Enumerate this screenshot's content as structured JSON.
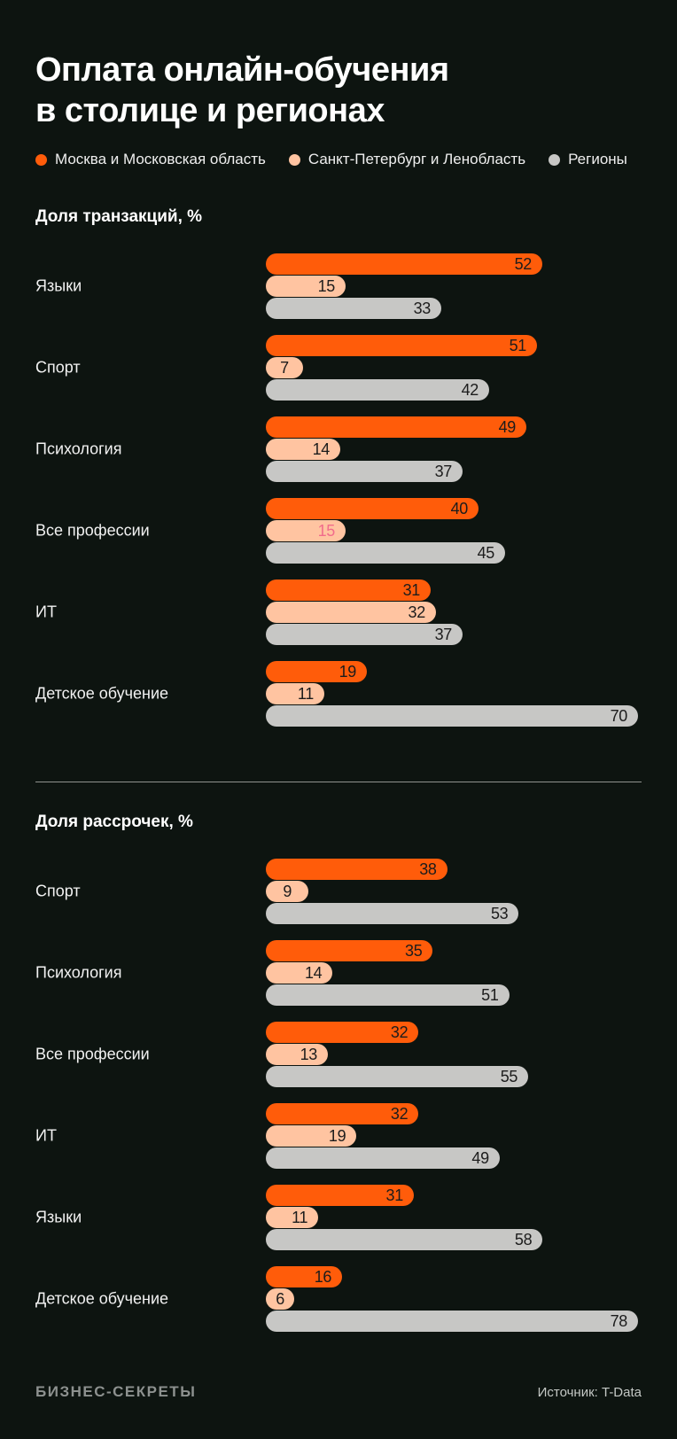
{
  "title_lines": [
    "Оплата онлайн-обучения",
    "в столице и регионах"
  ],
  "legend": {
    "items": [
      {
        "id": "moscow",
        "label": "Москва и Московская область",
        "color": "#FF5C0A"
      },
      {
        "id": "spb",
        "label": "Санкт-Петербург и Ленобласть",
        "color": "#FFC4A1"
      },
      {
        "id": "regions",
        "label": "Регионы",
        "color": "#C7C7C5"
      }
    ]
  },
  "colors": {
    "background": "#0D1410",
    "value_text": "#1C1C1C",
    "special_value_pink": "#F16C8C"
  },
  "sections": [
    {
      "heading": "Доля транзакций, %",
      "scale_max": 70,
      "rows": [
        {
          "label": "Языки",
          "values": [
            52,
            15,
            33
          ]
        },
        {
          "label": "Спорт",
          "values": [
            51,
            7,
            42
          ]
        },
        {
          "label": "Психология",
          "values": [
            49,
            14,
            37
          ]
        },
        {
          "label": "Все профессии",
          "values": [
            40,
            15,
            45
          ],
          "value_color_overrides": {
            "1": "#F16C8C"
          }
        },
        {
          "label": "ИТ",
          "values": [
            31,
            32,
            37
          ]
        },
        {
          "label": "Детское обучение",
          "values": [
            19,
            11,
            70
          ]
        }
      ]
    },
    {
      "heading": "Доля рассрочек, %",
      "scale_max": 78,
      "rows": [
        {
          "label": "Спорт",
          "values": [
            38,
            9,
            53
          ]
        },
        {
          "label": "Психология",
          "values": [
            35,
            14,
            51
          ]
        },
        {
          "label": "Все профессии",
          "values": [
            32,
            13,
            55
          ]
        },
        {
          "label": "ИТ",
          "values": [
            32,
            19,
            49
          ]
        },
        {
          "label": "Языки",
          "values": [
            31,
            11,
            58
          ]
        },
        {
          "label": "Детское обучение",
          "values": [
            16,
            6,
            78
          ]
        }
      ]
    }
  ],
  "footer": {
    "brand": "БИЗНЕС-СЕКРЕТЫ",
    "source": "Источник: T-Data"
  },
  "chart_data": [
    {
      "type": "bar",
      "orientation": "horizontal",
      "title": "Доля транзакций, %",
      "unit": "%",
      "categories": [
        "Языки",
        "Спорт",
        "Психология",
        "Все профессии",
        "ИТ",
        "Детское обучение"
      ],
      "series": [
        {
          "name": "Москва и Московская область",
          "color": "#FF5C0A",
          "values": [
            52,
            51,
            49,
            40,
            31,
            19
          ]
        },
        {
          "name": "Санкт-Петербург и Ленобласть",
          "color": "#FFC4A1",
          "values": [
            15,
            7,
            14,
            15,
            32,
            11
          ]
        },
        {
          "name": "Регионы",
          "color": "#C7C7C5",
          "values": [
            33,
            42,
            37,
            45,
            37,
            70
          ]
        }
      ],
      "xlim": [
        0,
        70
      ],
      "grid": false,
      "legend_position": "top",
      "value_labels": "inside-end"
    },
    {
      "type": "bar",
      "orientation": "horizontal",
      "title": "Доля рассрочек, %",
      "unit": "%",
      "categories": [
        "Спорт",
        "Психология",
        "Все профессии",
        "ИТ",
        "Языки",
        "Детское обучение"
      ],
      "series": [
        {
          "name": "Москва и Московская область",
          "color": "#FF5C0A",
          "values": [
            38,
            35,
            32,
            32,
            31,
            16
          ]
        },
        {
          "name": "Санкт-Петербург и Ленобласть",
          "color": "#FFC4A1",
          "values": [
            9,
            14,
            13,
            19,
            11,
            6
          ]
        },
        {
          "name": "Регионы",
          "color": "#C7C7C5",
          "values": [
            53,
            51,
            55,
            49,
            58,
            78
          ]
        }
      ],
      "xlim": [
        0,
        78
      ],
      "grid": false,
      "legend_position": "top",
      "value_labels": "inside-end"
    }
  ]
}
